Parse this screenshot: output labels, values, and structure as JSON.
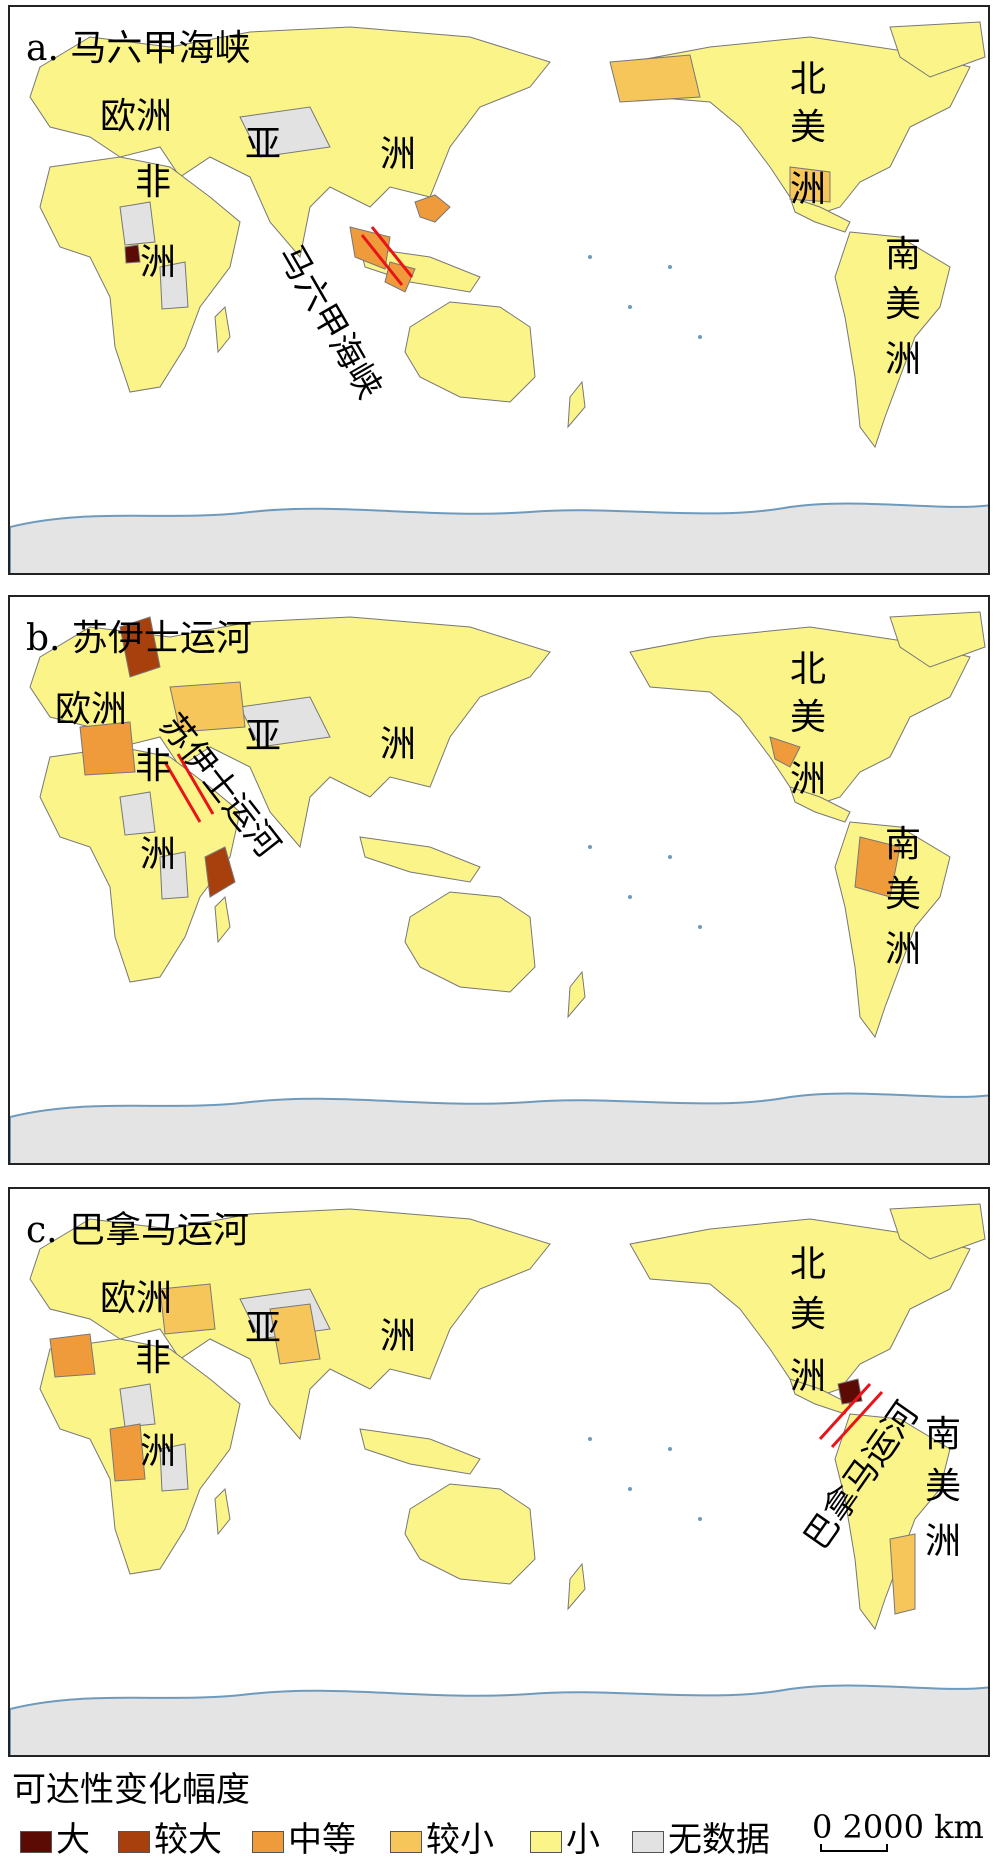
{
  "panels": [
    {
      "title": "a. 马六甲海峡",
      "route_label": "马六甲海峡",
      "continents": {
        "europe": "欧洲",
        "asia_1": "亚",
        "asia_2": "洲",
        "africa_1": "非",
        "africa_2": "洲",
        "na_1": "北",
        "na_2": "美",
        "na_3": "洲",
        "sa_1": "南",
        "sa_2": "美",
        "sa_3": "洲"
      }
    },
    {
      "title": "b. 苏伊士运河",
      "route_label": "苏伊士运河",
      "continents": {
        "europe": "欧洲",
        "asia_1": "亚",
        "asia_2": "洲",
        "africa_1": "非",
        "africa_2": "洲",
        "na_1": "北",
        "na_2": "美",
        "na_3": "洲",
        "sa_1": "南",
        "sa_2": "美",
        "sa_3": "洲"
      }
    },
    {
      "title": "c. 巴拿马运河",
      "route_label": "巴拿马运河",
      "continents": {
        "europe": "欧洲",
        "asia_1": "亚",
        "asia_2": "洲",
        "africa_1": "非",
        "africa_2": "洲",
        "na_1": "北",
        "na_2": "美",
        "na_3": "洲",
        "sa_1": "南",
        "sa_2": "美",
        "sa_3": "洲"
      }
    }
  ],
  "legend": {
    "title": "可达性变化幅度",
    "items": [
      {
        "label": "大",
        "color": "#5c0a04"
      },
      {
        "label": "较大",
        "color": "#a8400e"
      },
      {
        "label": "中等",
        "color": "#ef9b3c"
      },
      {
        "label": "较小",
        "color": "#f6c65a"
      },
      {
        "label": "小",
        "color": "#fbf488"
      },
      {
        "label": "无数据",
        "color": "#e2e2e2"
      }
    ]
  },
  "scale_bar": {
    "text": "0  2000 km"
  },
  "colors": {
    "ocean": "#ffffff",
    "coast": "#6e9bbd",
    "border": "#777777",
    "antarctica": "#e4e4e4",
    "route_line": "#e8141a"
  }
}
